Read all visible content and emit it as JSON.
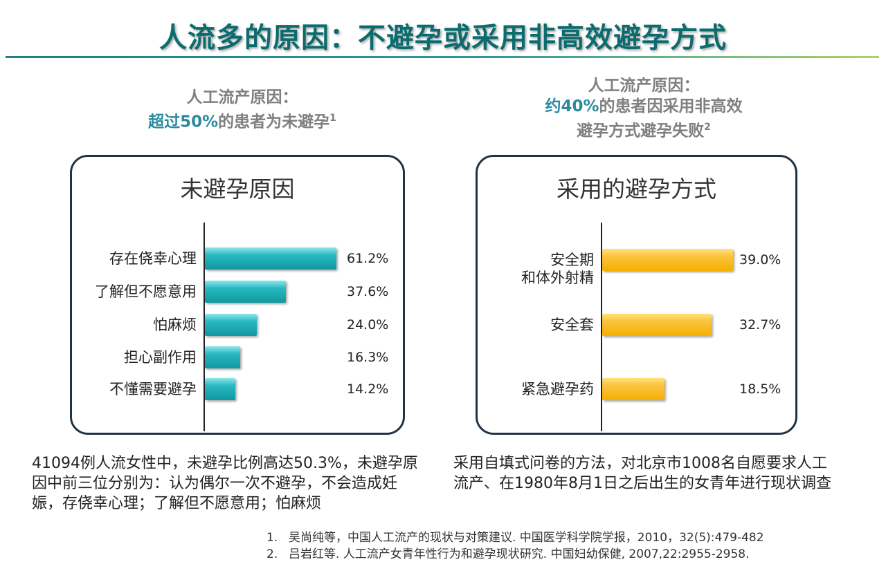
{
  "title": "人流多的原因：不避孕或采用非高效避孕方式",
  "left": {
    "subhead_line1": "人工流产原因：",
    "subhead_highlight": "超过50%",
    "subhead_rest": "的患者为未避孕",
    "subhead_sup": "1",
    "note": "41094例人流女性中，未避孕比例高达50.3%，未避孕原因中前三位分别为：认为偶尔一次不避孕，不会造成妊娠，存侥幸心理；了解但不愿意用；怕麻烦"
  },
  "right": {
    "subhead_line1": "人工流产原因：",
    "subhead_highlight": "约40%",
    "subhead_rest": "的患者因采用非高效",
    "subhead_line3": "避孕方式避孕失败",
    "subhead_sup": "2",
    "note": "采用自填式问卷的方法，对北京市1008名自愿要求人工流产、在1980年8月1日之后出生的女青年进行现状调查"
  },
  "chart_data": [
    {
      "type": "bar",
      "orientation": "horizontal",
      "title": "未避孕原因",
      "categories": [
        "存在侥幸心理",
        "了解但不愿意用",
        "怕麻烦",
        "担心副作用",
        "不懂需要避孕"
      ],
      "values": [
        61.2,
        37.6,
        24.0,
        16.3,
        14.2
      ],
      "labels": [
        "61.2%",
        "37.6%",
        "24.0%",
        "16.3%",
        "14.2%"
      ],
      "xlim": [
        0,
        61.2
      ],
      "color": "#1aa6ad",
      "grid": false
    },
    {
      "type": "bar",
      "orientation": "horizontal",
      "title": "采用的避孕方式",
      "categories": [
        [
          "安全期",
          "和体外射精"
        ],
        [
          "安全套"
        ],
        [
          "紧急避孕药"
        ]
      ],
      "values": [
        39.0,
        32.7,
        18.5
      ],
      "labels": [
        "39.0%",
        "32.7%",
        "18.5%"
      ],
      "xlim": [
        0,
        39.0
      ],
      "color": "#fbbf2a",
      "grid": false
    }
  ],
  "references": [
    {
      "num": "1.",
      "text": "吴尚纯等，中国人工流产的现状与对策建议. 中国医学科学院学报，2010，32(5):479-482"
    },
    {
      "num": "2.",
      "text": "吕岩红等. 人工流产女青年性行为和避孕现状研究. 中国妇幼保健, 2007,22:2955-2958."
    }
  ]
}
